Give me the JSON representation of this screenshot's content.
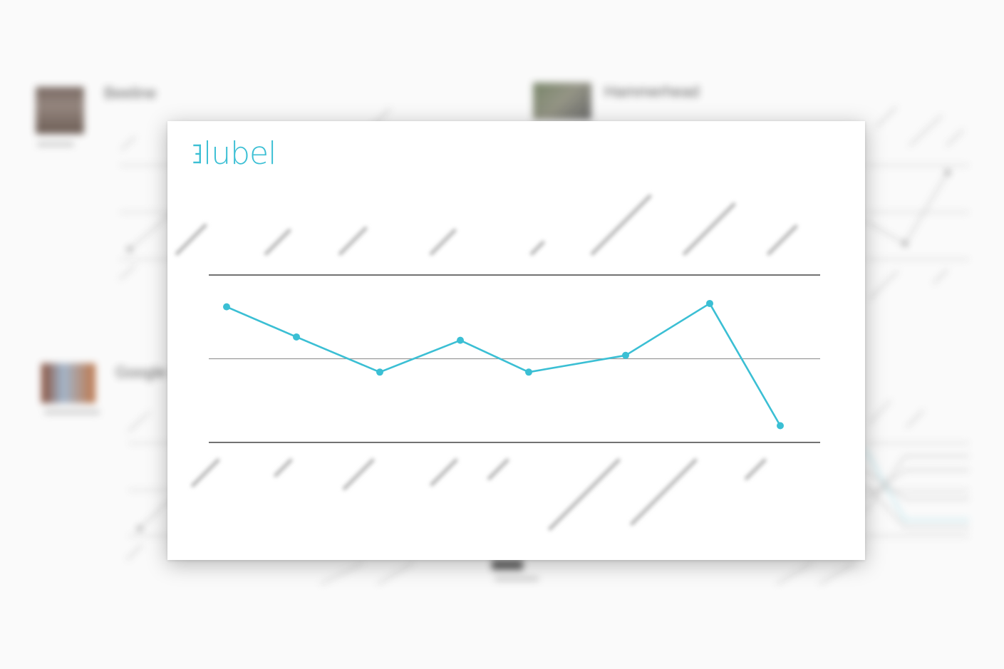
{
  "brand": {
    "logo_text": "lubel",
    "logo_color": "#3bbfd4"
  },
  "background": {
    "cards": [
      {
        "title": "Beeline"
      },
      {
        "title": "Hammerhead"
      },
      {
        "title": "Google"
      }
    ]
  },
  "chart_data": {
    "type": "line",
    "x": [
      0,
      1,
      2,
      3,
      4,
      5,
      6,
      7
    ],
    "series": [
      {
        "values": [
          0.81,
          0.63,
          0.42,
          0.61,
          0.42,
          0.52,
          0.83,
          0.1
        ]
      }
    ],
    "ylim": [
      0,
      1
    ],
    "grid": true,
    "line_color": "#3bbfd4",
    "top_labels_count": 8,
    "bottom_labels_count": 8,
    "axis_labels_legible": false
  }
}
